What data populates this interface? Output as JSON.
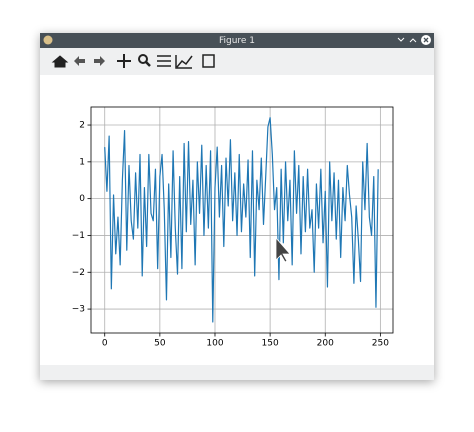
{
  "window": {
    "title": "Figure 1"
  },
  "chart_data": {
    "type": "line",
    "color": "#1f77b4",
    "grid": true,
    "x": [
      0,
      2,
      4,
      6,
      8,
      10,
      12,
      14,
      16,
      18,
      20,
      22,
      24,
      26,
      28,
      30,
      32,
      34,
      36,
      38,
      40,
      42,
      44,
      46,
      48,
      50,
      52,
      54,
      56,
      58,
      60,
      62,
      64,
      66,
      68,
      70,
      72,
      74,
      76,
      78,
      80,
      82,
      84,
      86,
      88,
      90,
      92,
      94,
      96,
      98,
      100,
      102,
      104,
      106,
      108,
      110,
      112,
      114,
      116,
      118,
      120,
      122,
      124,
      126,
      128,
      130,
      132,
      134,
      136,
      138,
      140,
      142,
      144,
      146,
      148,
      150,
      152,
      154,
      156,
      158,
      160,
      162,
      164,
      166,
      168,
      170,
      172,
      174,
      176,
      178,
      180,
      182,
      184,
      186,
      188,
      190,
      192,
      194,
      196,
      198,
      200,
      202,
      204,
      206,
      208,
      210,
      212,
      214,
      216,
      218,
      220,
      222,
      224,
      226,
      228,
      230,
      232,
      234,
      236,
      238,
      240,
      242,
      244,
      246,
      248
    ],
    "values": [
      1.4,
      0.2,
      1.7,
      -2.45,
      0.1,
      -1.5,
      -0.5,
      -1.8,
      0.5,
      1.85,
      -1.4,
      0.9,
      -0.6,
      -1.1,
      0.7,
      -0.8,
      1.2,
      -2.1,
      0.3,
      -1.3,
      1.2,
      -0.4,
      -0.6,
      0.8,
      -1.9,
      0.6,
      1.2,
      -0.3,
      -2.75,
      0.4,
      -1.6,
      1.3,
      -0.8,
      -2.05,
      0.6,
      -1.9,
      1.5,
      -0.9,
      1.55,
      -0.7,
      0.5,
      -1.8,
      1.0,
      -0.4,
      1.45,
      -1.0,
      0.9,
      -0.8,
      1.3,
      -3.35,
      0.3,
      1.4,
      -0.5,
      0.9,
      -1.3,
      1.1,
      -0.2,
      1.6,
      -0.6,
      0.7,
      -1.0,
      1.2,
      -0.9,
      0.4,
      -0.5,
      1.05,
      -1.6,
      1.3,
      -2.1,
      0.5,
      -0.3,
      1.1,
      -0.7,
      0.6,
      1.95,
      2.2,
      1.2,
      -0.3,
      0.3,
      -2.2,
      0.8,
      -1.2,
      1.0,
      -0.6,
      0.5,
      -1.8,
      1.3,
      -0.4,
      0.9,
      -1.5,
      0.6,
      -0.9,
      0.8,
      -0.8,
      -0.3,
      -2.0,
      0.4,
      -0.8,
      0.8,
      -1.2,
      0.2,
      -2.4,
      1.0,
      -0.6,
      0.7,
      -1.1,
      0.5,
      -1.6,
      0.3,
      -0.6,
      0.9,
      0.1,
      -0.5,
      -2.3,
      -0.2,
      -1.1,
      -2.25,
      1.0,
      -0.3,
      1.5,
      -0.5,
      -1.0,
      0.6,
      -2.95,
      0.8
    ],
    "xlim": [
      -12.45,
      261.45
    ],
    "ylim": [
      -3.65,
      2.49
    ],
    "xticks": [
      0,
      50,
      100,
      150,
      200,
      250
    ],
    "yticks": [
      {
        "value": -3,
        "label": "−3"
      },
      {
        "value": -2,
        "label": "−2"
      },
      {
        "value": -1,
        "label": "−1"
      },
      0,
      1,
      2
    ]
  }
}
